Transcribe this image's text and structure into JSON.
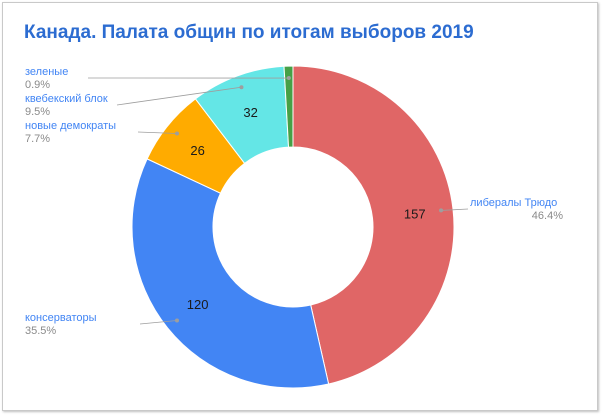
{
  "chart_data": {
    "type": "pie",
    "variant": "donut",
    "title": "Канада. Палата общин по итогам выборов 2019",
    "slices": [
      {
        "name": "либералы Трюдо",
        "value": 157,
        "percent": "46.4%",
        "color": "#e06666"
      },
      {
        "name": "консерваторы",
        "value": 120,
        "percent": "35.5%",
        "color": "#4285f4"
      },
      {
        "name": "новые демократы",
        "value": 26,
        "percent": "7.7%",
        "color": "#ffab00"
      },
      {
        "name": "квебекский блок",
        "value": 32,
        "percent": "9.5%",
        "color": "#64e6e6"
      },
      {
        "name": "зеленые",
        "value": 3,
        "percent": "0.9%",
        "color": "#46a046"
      }
    ],
    "legend_color": "#4285f4"
  }
}
